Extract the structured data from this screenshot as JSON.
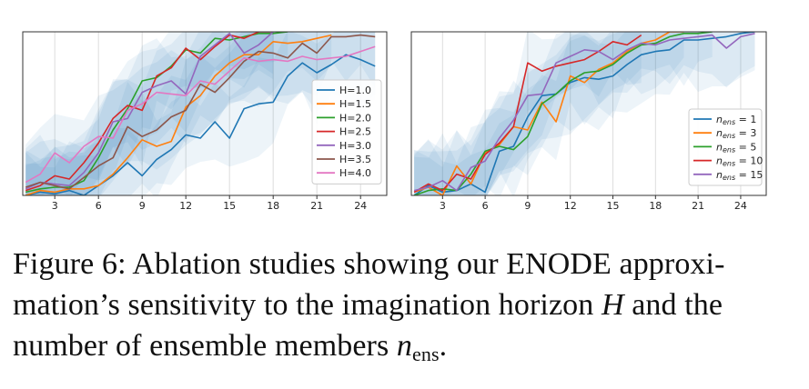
{
  "chart_data": [
    {
      "type": "line",
      "xlabel": "",
      "ylabel": "",
      "x": [
        1,
        2,
        3,
        4,
        5,
        6,
        7,
        8,
        9,
        10,
        11,
        12,
        13,
        14,
        15,
        16,
        17,
        18,
        19,
        20,
        21,
        22,
        23,
        24,
        25
      ],
      "xticks": [
        3,
        6,
        9,
        12,
        15,
        18,
        21,
        24
      ],
      "xlim": [
        0.8,
        25.8
      ],
      "ylim": [
        0,
        1
      ],
      "grid": "vertical",
      "legend_position": "right",
      "series": [
        {
          "name": "H=1.0",
          "color": "#1f77b4",
          "values": [
            0.0,
            0.02,
            0.01,
            0.03,
            0.0,
            0.06,
            0.12,
            0.2,
            0.12,
            0.22,
            0.28,
            0.37,
            0.35,
            0.45,
            0.35,
            0.53,
            0.56,
            0.57,
            0.73,
            0.81,
            0.75,
            0.8,
            0.86,
            0.83,
            0.79
          ]
        },
        {
          "name": "H=1.5",
          "color": "#ff7f0e",
          "values": [
            0.0,
            0.03,
            0.02,
            0.04,
            0.04,
            0.06,
            0.13,
            0.23,
            0.34,
            0.3,
            0.33,
            0.54,
            0.61,
            0.73,
            0.81,
            0.86,
            0.86,
            0.94,
            0.93,
            0.94,
            0.96,
            0.98,
            null,
            null,
            null
          ]
        },
        {
          "name": "H=2.0",
          "color": "#2ca02c",
          "values": [
            0.02,
            0.04,
            0.05,
            0.05,
            0.09,
            0.23,
            0.4,
            0.53,
            0.7,
            0.72,
            0.79,
            0.89,
            0.87,
            0.96,
            0.95,
            0.97,
            0.99,
            0.99,
            1.0,
            null,
            null,
            null,
            null,
            null,
            null
          ]
        },
        {
          "name": "H=2.5",
          "color": "#d62728",
          "values": [
            0.03,
            0.06,
            0.12,
            0.1,
            0.2,
            0.32,
            0.47,
            0.55,
            0.52,
            0.73,
            0.78,
            0.9,
            0.83,
            0.91,
            0.98,
            0.96,
            1.0,
            1.0,
            null,
            null,
            null,
            null,
            null,
            null,
            null
          ]
        },
        {
          "name": "H=3.0",
          "color": "#9467bd",
          "values": [
            0.04,
            0.08,
            0.07,
            0.06,
            0.14,
            0.26,
            0.45,
            0.47,
            0.63,
            0.67,
            0.7,
            0.62,
            0.85,
            0.92,
            0.99,
            0.87,
            0.92,
            1.0,
            null,
            null,
            null,
            null,
            null,
            null,
            null
          ]
        },
        {
          "name": "H=3.5",
          "color": "#8c564b",
          "values": [
            0.05,
            0.08,
            0.06,
            0.04,
            0.11,
            0.18,
            0.23,
            0.42,
            0.36,
            0.4,
            0.48,
            0.52,
            0.68,
            0.63,
            0.72,
            0.82,
            0.88,
            0.87,
            0.84,
            0.93,
            0.87,
            0.97,
            0.97,
            0.98,
            0.97
          ]
        },
        {
          "name": "H=4.0",
          "color": "#e377c2",
          "values": [
            0.08,
            0.13,
            0.26,
            0.2,
            0.3,
            0.36,
            0.35,
            0.52,
            0.56,
            0.63,
            0.62,
            0.61,
            0.7,
            0.68,
            0.76,
            0.84,
            0.82,
            0.83,
            0.82,
            0.85,
            0.83,
            0.84,
            0.85,
            0.88,
            0.91
          ]
        }
      ]
    },
    {
      "type": "line",
      "xlabel": "",
      "ylabel": "",
      "x": [
        1,
        2,
        3,
        4,
        5,
        6,
        7,
        8,
        9,
        10,
        11,
        12,
        13,
        14,
        15,
        16,
        17,
        18,
        19,
        20,
        21,
        22,
        23,
        24,
        25
      ],
      "xticks": [
        3,
        6,
        9,
        12,
        15,
        18,
        21,
        24
      ],
      "xlim": [
        0.8,
        25.8
      ],
      "ylim": [
        0,
        1
      ],
      "grid": "vertical",
      "legend_position": "right",
      "series": [
        {
          "name": "n_ens = 1",
          "legend_base": "n",
          "legend_sub": "ens",
          "legend_rest": " = 1",
          "color": "#1f77b4",
          "values": [
            0.0,
            0.06,
            0.02,
            0.03,
            0.07,
            0.02,
            0.27,
            0.3,
            0.48,
            0.61,
            0.62,
            0.69,
            0.72,
            0.71,
            0.73,
            0.8,
            0.86,
            0.88,
            0.89,
            0.95,
            0.95,
            0.96,
            0.97,
            0.99,
            1.0
          ]
        },
        {
          "name": "n_ens = 3",
          "legend_base": "n",
          "legend_sub": "ens",
          "legend_rest": " = 3",
          "color": "#ff7f0e",
          "values": [
            0.02,
            0.05,
            0.0,
            0.18,
            0.07,
            0.26,
            0.31,
            0.42,
            0.4,
            0.57,
            0.45,
            0.73,
            0.69,
            0.77,
            0.81,
            0.88,
            0.93,
            0.95,
            1.0,
            1.0,
            null,
            null,
            null,
            null,
            null
          ]
        },
        {
          "name": "n_ens = 5",
          "legend_base": "n",
          "legend_sub": "ens",
          "legend_rest": " = 5",
          "color": "#2ca02c",
          "values": [
            0.0,
            0.03,
            0.04,
            0.03,
            0.13,
            0.27,
            0.3,
            0.28,
            0.36,
            0.56,
            0.62,
            0.7,
            0.75,
            0.76,
            0.8,
            0.87,
            0.92,
            0.93,
            0.97,
            0.99,
            0.99,
            1.0,
            null,
            null,
            null
          ]
        },
        {
          "name": "n_ens = 10",
          "legend_base": "n",
          "legend_sub": "ens",
          "legend_rest": " = 10",
          "color": "#d62728",
          "values": [
            0.02,
            0.07,
            0.03,
            0.13,
            0.1,
            0.25,
            0.32,
            0.42,
            0.81,
            0.76,
            0.79,
            0.81,
            0.83,
            0.88,
            0.94,
            0.92,
            0.98,
            null,
            null,
            null,
            null,
            null,
            null,
            null,
            null
          ]
        },
        {
          "name": "n_ens = 15",
          "legend_base": "n",
          "legend_sub": "ens",
          "legend_rest": " = 15",
          "color": "#9467bd",
          "values": [
            0.03,
            0.05,
            0.09,
            0.03,
            0.17,
            0.21,
            0.35,
            0.46,
            0.61,
            0.62,
            0.81,
            0.85,
            0.89,
            0.88,
            0.83,
            0.89,
            0.93,
            0.92,
            0.95,
            0.96,
            0.97,
            0.98,
            0.9,
            0.97,
            0.99
          ]
        }
      ]
    }
  ],
  "caption": {
    "line1": "Figure 6: Ablation studies showing our ENODE approxi-",
    "line2_a": "mation’s sensitivity to the imagination horizon ",
    "line2_var": "H",
    "line2_b": " and the",
    "line3_a": "number of ensemble members ",
    "line3_var": "n",
    "line3_sub": "ens",
    "line3_b": "."
  },
  "colors": {
    "band": "#1f77b4",
    "axis": "#333333",
    "grid": "#dddddd"
  }
}
